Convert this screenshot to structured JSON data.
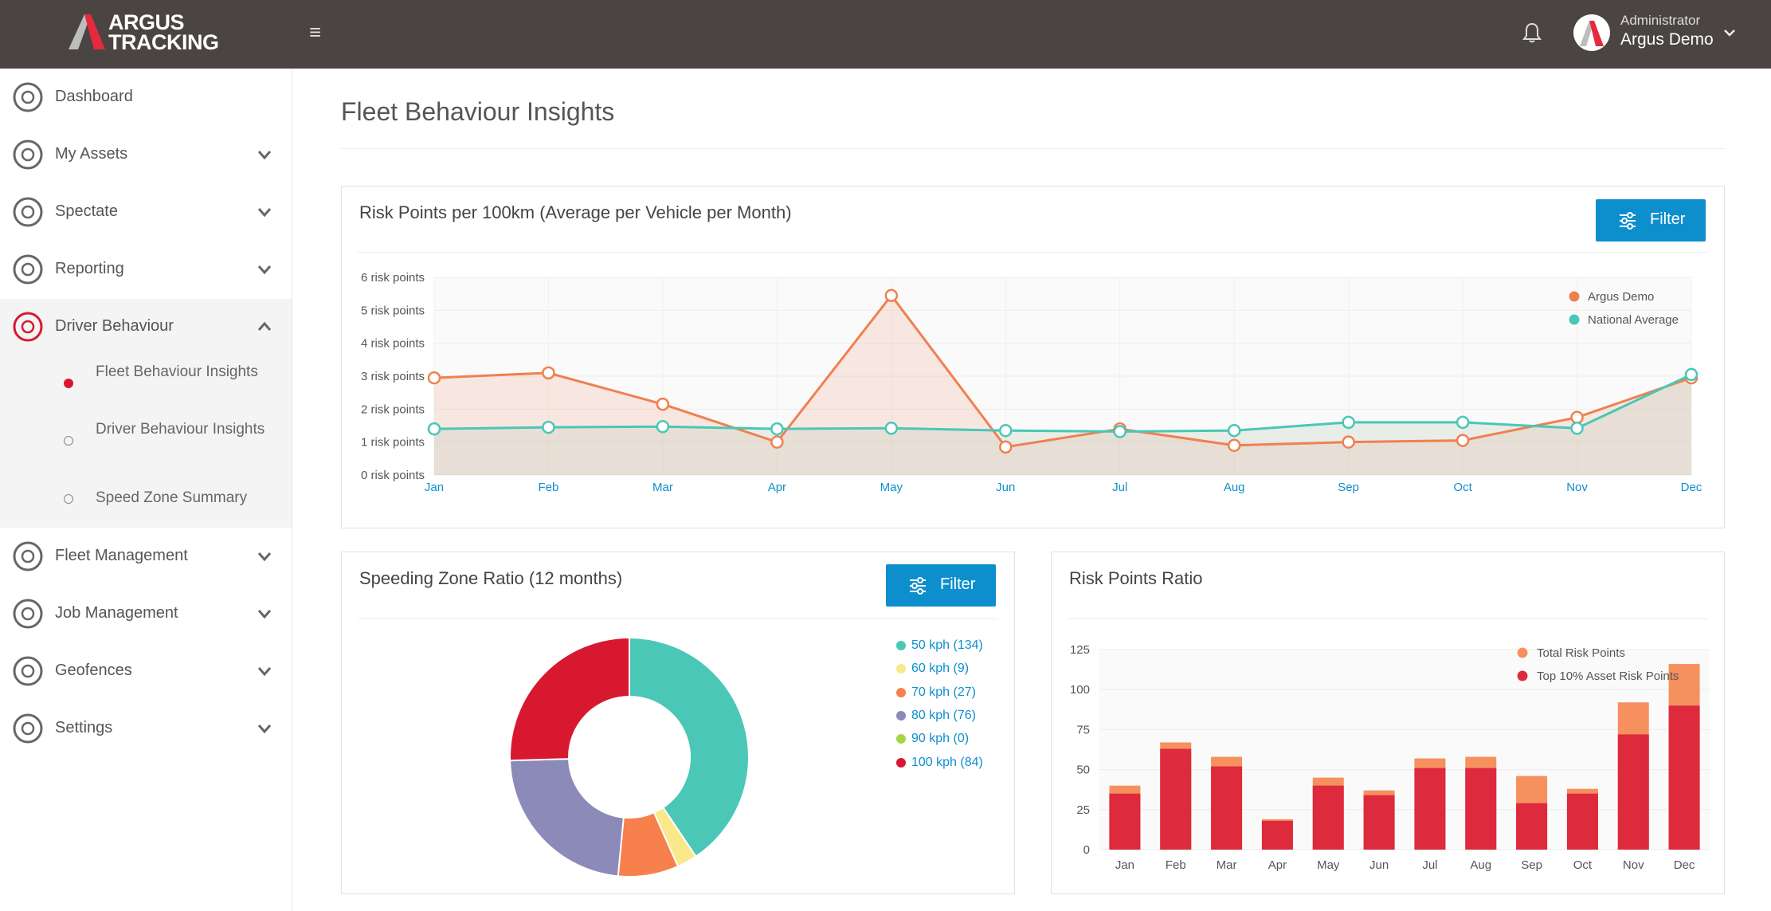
{
  "header": {
    "logo_line1": "ARGUS",
    "logo_line2": "TRACKING",
    "user_role": "Administrator",
    "user_name": "Argus Demo"
  },
  "sidebar": {
    "items": [
      {
        "label": "Dashboard",
        "icon": "dashboard-icon"
      },
      {
        "label": "My Assets",
        "icon": "assets-icon"
      },
      {
        "label": "Spectate",
        "icon": "map-pin-icon"
      },
      {
        "label": "Reporting",
        "icon": "reporting-icon"
      },
      {
        "label": "Driver Behaviour",
        "icon": "lightbulb-icon"
      },
      {
        "label": "Fleet Management",
        "icon": "fleet-icon"
      },
      {
        "label": "Job Management",
        "icon": "briefcase-icon"
      },
      {
        "label": "Geofences",
        "icon": "geofence-icon"
      },
      {
        "label": "Settings",
        "icon": "gear-icon"
      }
    ],
    "submenu": [
      {
        "label": "Fleet Behaviour Insights",
        "active": true
      },
      {
        "label": "Driver Behaviour Insights",
        "active": false
      },
      {
        "label": "Speed Zone Summary",
        "active": false
      }
    ]
  },
  "main": {
    "page_title": "Fleet Behaviour Insights",
    "filter_label": "Filter"
  },
  "colors": {
    "accent": "#0e8fcd",
    "argus": "#f0804f",
    "national": "#4ac7b6",
    "topbar": "#4a4442",
    "active": "#d8182f"
  },
  "chart_data": [
    {
      "type": "line",
      "title": "Risk Points per 100km (Average per Vehicle per Month)",
      "categories": [
        "Jan",
        "Feb",
        "Mar",
        "Apr",
        "May",
        "Jun",
        "Jul",
        "Aug",
        "Sep",
        "Oct",
        "Nov",
        "Dec"
      ],
      "y_ticks": [
        "0 risk points",
        "1 risk points",
        "2 risk points",
        "3 risk points",
        "4 risk points",
        "5 risk points",
        "6 risk points"
      ],
      "ylim": [
        0,
        6
      ],
      "legend_position": "top-right",
      "series": [
        {
          "name": "Argus Demo",
          "color": "#f0804f",
          "values": [
            2.95,
            3.1,
            2.15,
            1.0,
            5.45,
            0.85,
            1.4,
            0.9,
            1.0,
            1.05,
            1.75,
            2.95
          ]
        },
        {
          "name": "National Average",
          "color": "#4ac7b6",
          "values": [
            1.4,
            1.45,
            1.47,
            1.4,
            1.42,
            1.35,
            1.32,
            1.35,
            1.6,
            1.6,
            1.42,
            3.05
          ]
        }
      ]
    },
    {
      "type": "pie",
      "title": "Speeding Zone Ratio (12 months)",
      "slices": [
        {
          "label": "50 kph (134)",
          "value": 134,
          "color": "#4ac7b6"
        },
        {
          "label": "60 kph (9)",
          "value": 9,
          "color": "#fbe88a"
        },
        {
          "label": "70 kph (27)",
          "value": 27,
          "color": "#f7804c"
        },
        {
          "label": "80 kph (76)",
          "value": 76,
          "color": "#8b8ab8"
        },
        {
          "label": "90 kph (0)",
          "value": 0,
          "color": "#a3d64b"
        },
        {
          "label": "100 kph (84)",
          "value": 84,
          "color": "#d8182f"
        }
      ]
    },
    {
      "type": "bar",
      "title": "Risk Points Ratio",
      "categories": [
        "Jan",
        "Feb",
        "Mar",
        "Apr",
        "May",
        "Jun",
        "Jul",
        "Aug",
        "Sep",
        "Oct",
        "Nov",
        "Dec"
      ],
      "y_ticks": [
        "0",
        "25",
        "50",
        "75",
        "100",
        "125"
      ],
      "ylim": [
        0,
        125
      ],
      "legend_position": "top-right",
      "series": [
        {
          "name": "Total Risk Points",
          "color": "#f7905f",
          "values": [
            40,
            67,
            58,
            19,
            45,
            37,
            57,
            58,
            46,
            38,
            92,
            116
          ]
        },
        {
          "name": "Top 10% Asset Risk Points",
          "color": "#dd2a3c",
          "values": [
            35,
            63,
            52,
            18,
            40,
            34,
            51,
            51,
            29,
            35,
            72,
            90
          ]
        }
      ]
    }
  ]
}
